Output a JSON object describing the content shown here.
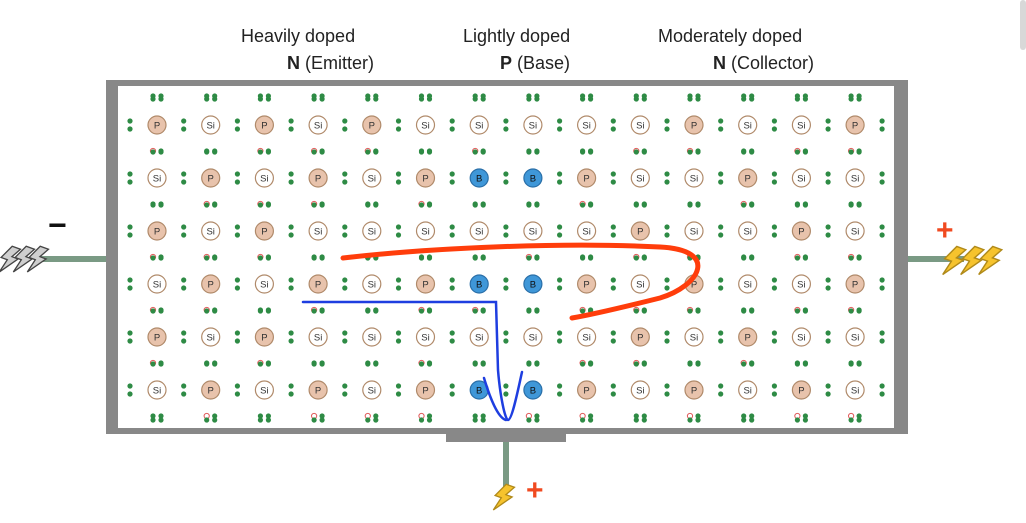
{
  "regions": [
    {
      "id": "emitter",
      "doping": "Heavily doped",
      "type": "N",
      "name": "(Emitter)"
    },
    {
      "id": "base",
      "doping": "Lightly doped",
      "type": "P",
      "name": "(Base)"
    },
    {
      "id": "collector",
      "doping": "Moderately doped",
      "type": "N",
      "name": "(Collector)"
    }
  ],
  "atoms": {
    "silicon": "Si",
    "phosphorus": "P",
    "boron": "B"
  },
  "lattice": {
    "columns": 14,
    "rows": 6,
    "grid": [
      [
        "P",
        "Si",
        "P",
        "Si",
        "P",
        "Si",
        "Si",
        "Si",
        "Si",
        "Si",
        "P",
        "Si",
        "Si",
        "P"
      ],
      [
        "Si",
        "P",
        "Si",
        "P",
        "Si",
        "P",
        "B",
        "B",
        "P",
        "Si",
        "Si",
        "P",
        "Si",
        "Si"
      ],
      [
        "P",
        "Si",
        "P",
        "Si",
        "Si",
        "Si",
        "Si",
        "Si",
        "Si",
        "P",
        "Si",
        "Si",
        "P",
        "Si"
      ],
      [
        "Si",
        "P",
        "Si",
        "P",
        "Si",
        "P",
        "B",
        "B",
        "P",
        "Si",
        "P",
        "Si",
        "Si",
        "P"
      ],
      [
        "P",
        "Si",
        "P",
        "Si",
        "Si",
        "Si",
        "Si",
        "Si",
        "Si",
        "P",
        "Si",
        "P",
        "Si",
        "Si"
      ],
      [
        "Si",
        "P",
        "Si",
        "P",
        "Si",
        "P",
        "B",
        "B",
        "P",
        "Si",
        "P",
        "Si",
        "P",
        "Si"
      ]
    ]
  },
  "terminals": {
    "left_sign": "−",
    "right_sign": "+",
    "bottom_sign": "+"
  },
  "colors": {
    "silicon_fill": "#ffffff",
    "silicon_stroke": "#b08a6a",
    "phosphorus_fill": "#e8c3ac",
    "phosphorus_stroke": "#b08a6a",
    "boron_fill": "#3f97d8",
    "boron_stroke": "#2a6fa8",
    "electron": "#2e8b45",
    "hole": "#e05a5a",
    "frame": "#888888",
    "wire": "#7a9a84",
    "electron_flow": "#ff3d0b",
    "hole_flow": "#1e3ee0",
    "sign_red": "#f04a20",
    "lightning_fill": "#f6c32d",
    "lightning_stroke": "#b08a1a"
  },
  "icons": {
    "lightning": "lightning-bolt-icon"
  }
}
